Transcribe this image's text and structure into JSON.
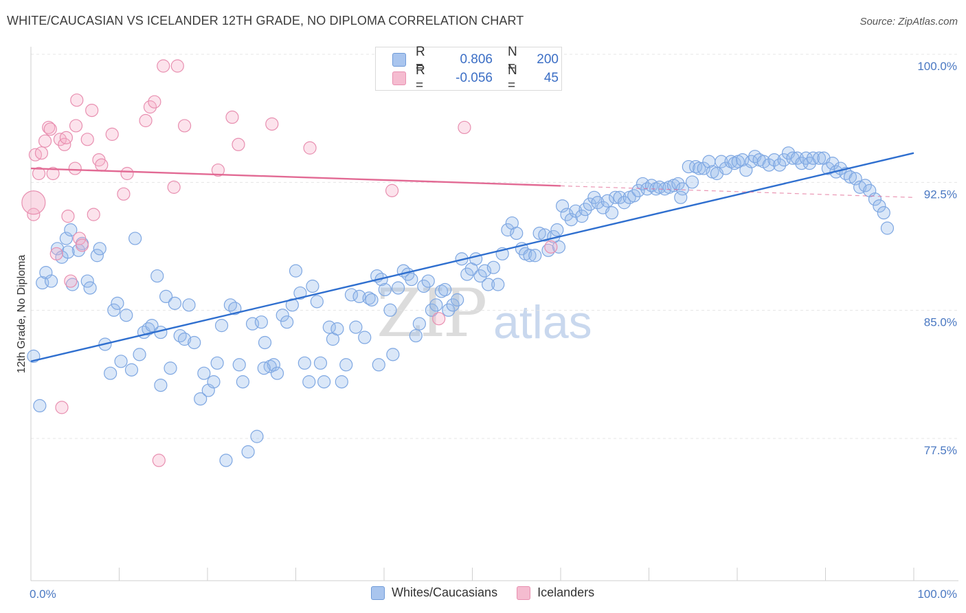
{
  "title": "WHITE/CAUCASIAN VS ICELANDER 12TH GRADE, NO DIPLOMA CORRELATION CHART",
  "source": "Source: ZipAtlas.com",
  "watermark": {
    "zip": "ZIP",
    "atlas": "atlas"
  },
  "legend": {
    "rows": [
      {
        "r_label": "R =",
        "r_value": "0.806",
        "n_label": "N =",
        "n_value": "200",
        "color": "#a9c5ee",
        "border": "#6f9ad8"
      },
      {
        "r_label": "R =",
        "r_value": "-0.056",
        "n_label": "N =",
        "n_value": "45",
        "color": "#f5bcd0",
        "border": "#e88fb0"
      }
    ]
  },
  "bottom_legend": [
    {
      "label": "Whites/Caucasians",
      "color": "#a9c5ee",
      "border": "#6f9ad8"
    },
    {
      "label": "Icelanders",
      "color": "#f5bcd0",
      "border": "#e88fb0"
    }
  ],
  "chart_data": {
    "type": "scatter",
    "ylabel": "12th Grade, No Diploma",
    "xlim": [
      0,
      100
    ],
    "ylim": [
      70.0,
      101.0
    ],
    "x_tick_labels": [
      {
        "x": 0,
        "label": "0.0%"
      },
      {
        "x": 100,
        "label": "100.0%"
      }
    ],
    "y_ticks": [
      {
        "y": 100.0,
        "label": "100.0%"
      },
      {
        "y": 92.5,
        "label": "92.5%"
      },
      {
        "y": 85.0,
        "label": "85.0%"
      },
      {
        "y": 77.5,
        "label": "77.5%"
      }
    ],
    "grid": true,
    "series": [
      {
        "name": "Whites/Caucasians",
        "color": "#7ea7e2",
        "fill": "rgba(150,185,235,0.35)",
        "trend": {
          "x": [
            0,
            100
          ],
          "y": [
            82.7,
            94.9
          ],
          "color": "#2f6fcf",
          "dashed_from": null
        },
        "points": [
          [
            0.3,
            83.0
          ],
          [
            1,
            80.1
          ],
          [
            1.3,
            87.3
          ],
          [
            1.7,
            87.9
          ],
          [
            2.3,
            87.4
          ],
          [
            3,
            89.3
          ],
          [
            3.5,
            88.8
          ],
          [
            4,
            89.9
          ],
          [
            4.5,
            90.4
          ],
          [
            4.7,
            87.2
          ],
          [
            5.4,
            89.2
          ],
          [
            5.8,
            89.6
          ],
          [
            6.4,
            87.4
          ],
          [
            6.7,
            87.0
          ],
          [
            7.5,
            88.9
          ],
          [
            7.8,
            89.3
          ],
          [
            8.4,
            83.7
          ],
          [
            9,
            82.0
          ],
          [
            9.4,
            85.7
          ],
          [
            9.8,
            86.1
          ],
          [
            10.2,
            82.7
          ],
          [
            10.8,
            85.4
          ],
          [
            11.4,
            82.2
          ],
          [
            11.8,
            89.9
          ],
          [
            12.3,
            83.1
          ],
          [
            12.8,
            84.4
          ],
          [
            13.3,
            84.6
          ],
          [
            13.7,
            84.8
          ],
          [
            14.3,
            87.7
          ],
          [
            14.7,
            84.4
          ],
          [
            15.3,
            86.5
          ],
          [
            15.8,
            82.3
          ],
          [
            16.3,
            86.1
          ],
          [
            16.9,
            84.2
          ],
          [
            17.4,
            84.0
          ],
          [
            17.9,
            86.0
          ],
          [
            18.5,
            83.8
          ],
          [
            19.2,
            80.5
          ],
          [
            19.6,
            82.0
          ],
          [
            20.1,
            81.0
          ],
          [
            20.7,
            81.5
          ],
          [
            21.1,
            82.6
          ],
          [
            21.6,
            84.8
          ],
          [
            22.1,
            76.9
          ],
          [
            22.6,
            86.0
          ],
          [
            23.1,
            85.8
          ],
          [
            23.6,
            82.5
          ],
          [
            24,
            81.5
          ],
          [
            24.6,
            77.4
          ],
          [
            25.1,
            84.9
          ],
          [
            25.6,
            78.3
          ],
          [
            26.1,
            85.0
          ],
          [
            26.5,
            83.8
          ],
          [
            27.1,
            82.4
          ],
          [
            27.5,
            82.5
          ],
          [
            27.9,
            82.0
          ],
          [
            28.5,
            85.4
          ],
          [
            29,
            85.0
          ],
          [
            29.6,
            86.0
          ],
          [
            30,
            88.0
          ],
          [
            30.5,
            86.7
          ],
          [
            31,
            82.6
          ],
          [
            31.5,
            81.5
          ],
          [
            31.9,
            87.1
          ],
          [
            32.4,
            86.2
          ],
          [
            32.8,
            82.6
          ],
          [
            33.2,
            81.5
          ],
          [
            33.8,
            84.7
          ],
          [
            34.2,
            84.0
          ],
          [
            34.7,
            84.6
          ],
          [
            35.2,
            81.5
          ],
          [
            35.7,
            82.5
          ],
          [
            36.3,
            86.6
          ],
          [
            36.8,
            84.7
          ],
          [
            37.2,
            86.5
          ],
          [
            37.8,
            84.1
          ],
          [
            38.3,
            86.4
          ],
          [
            38.6,
            86.3
          ],
          [
            39.2,
            87.7
          ],
          [
            39.7,
            87.5
          ],
          [
            40.1,
            86.9
          ],
          [
            40.7,
            85.7
          ],
          [
            41,
            83.1
          ],
          [
            41.6,
            87.0
          ],
          [
            42.2,
            88.0
          ],
          [
            42.7,
            87.8
          ],
          [
            43.1,
            87.5
          ],
          [
            43.6,
            84.2
          ],
          [
            44,
            84.9
          ],
          [
            44.5,
            87.1
          ],
          [
            45,
            87.4
          ],
          [
            45.4,
            85.7
          ],
          [
            45.9,
            86.0
          ],
          [
            46.5,
            86.8
          ],
          [
            46.9,
            86.9
          ],
          [
            47.3,
            85.7
          ],
          [
            47.8,
            86.0
          ],
          [
            48.3,
            86.3
          ],
          [
            48.8,
            88.7
          ],
          [
            49.4,
            87.8
          ],
          [
            49.9,
            88.1
          ],
          [
            50.4,
            88.7
          ],
          [
            50.9,
            87.7
          ],
          [
            51.4,
            88.0
          ],
          [
            51.8,
            87.2
          ],
          [
            52.4,
            88.2
          ],
          [
            52.9,
            87.2
          ],
          [
            53.4,
            89.0
          ],
          [
            54,
            90.4
          ],
          [
            54.5,
            90.8
          ],
          [
            55,
            90.2
          ],
          [
            55.6,
            89.3
          ],
          [
            56,
            89.0
          ],
          [
            56.5,
            88.9
          ],
          [
            57.1,
            88.9
          ],
          [
            57.6,
            90.2
          ],
          [
            58.2,
            90.1
          ],
          [
            58.6,
            89.2
          ],
          [
            59.2,
            90.0
          ],
          [
            59.6,
            90.4
          ],
          [
            60.2,
            91.8
          ],
          [
            60.7,
            91.3
          ],
          [
            61.2,
            91.0
          ],
          [
            61.7,
            91.5
          ],
          [
            62.4,
            91.2
          ],
          [
            62.8,
            91.6
          ],
          [
            63.3,
            91.9
          ],
          [
            63.8,
            92.3
          ],
          [
            64.2,
            92.0
          ],
          [
            64.8,
            91.7
          ],
          [
            65.3,
            92.1
          ],
          [
            65.8,
            91.4
          ],
          [
            66.2,
            92.3
          ],
          [
            66.7,
            92.3
          ],
          [
            67.2,
            92.0
          ],
          [
            67.8,
            92.3
          ],
          [
            68.3,
            92.4
          ],
          [
            68.8,
            92.7
          ],
          [
            69.3,
            93.1
          ],
          [
            69.8,
            92.8
          ],
          [
            70.3,
            93.0
          ],
          [
            70.8,
            92.8
          ],
          [
            71.2,
            92.9
          ],
          [
            71.8,
            92.8
          ],
          [
            72.3,
            92.9
          ],
          [
            72.8,
            93.0
          ],
          [
            73.3,
            93.1
          ],
          [
            73.8,
            92.8
          ],
          [
            74.5,
            94.1
          ],
          [
            74.9,
            93.2
          ],
          [
            75.3,
            94.1
          ],
          [
            75.7,
            94.0
          ],
          [
            76.2,
            94.0
          ],
          [
            76.8,
            94.4
          ],
          [
            77.2,
            93.8
          ],
          [
            77.7,
            93.7
          ],
          [
            78.2,
            94.4
          ],
          [
            78.7,
            94.0
          ],
          [
            79.3,
            94.4
          ],
          [
            79.7,
            94.3
          ],
          [
            80.1,
            94.4
          ],
          [
            80.6,
            94.5
          ],
          [
            81,
            93.9
          ],
          [
            81.6,
            94.4
          ],
          [
            82,
            94.7
          ],
          [
            82.5,
            94.5
          ],
          [
            83,
            94.4
          ],
          [
            83.6,
            94.2
          ],
          [
            84.2,
            94.5
          ],
          [
            84.8,
            94.2
          ],
          [
            85.3,
            94.5
          ],
          [
            85.8,
            94.9
          ],
          [
            86.3,
            94.6
          ],
          [
            86.8,
            94.6
          ],
          [
            87.3,
            94.3
          ],
          [
            87.8,
            94.6
          ],
          [
            88.2,
            94.3
          ],
          [
            88.6,
            94.6
          ],
          [
            89.3,
            94.6
          ],
          [
            89.8,
            94.6
          ],
          [
            90.3,
            94.0
          ],
          [
            90.8,
            94.3
          ],
          [
            91.2,
            93.8
          ],
          [
            91.7,
            94.0
          ],
          [
            92.3,
            93.7
          ],
          [
            92.8,
            93.5
          ],
          [
            93.4,
            93.4
          ],
          [
            93.9,
            92.9
          ],
          [
            94.5,
            93.0
          ],
          [
            95,
            92.7
          ],
          [
            95.6,
            92.2
          ],
          [
            96.1,
            91.8
          ],
          [
            96.6,
            91.4
          ],
          [
            97,
            90.5
          ],
          [
            4.2,
            89.1
          ],
          [
            14.7,
            81.3
          ],
          [
            26.4,
            82.3
          ],
          [
            39.4,
            82.5
          ],
          [
            59.8,
            89.4
          ],
          [
            73.6,
            92.3
          ]
        ]
      },
      {
        "name": "Icelanders",
        "color": "#e88fb0",
        "fill": "rgba(245,175,200,0.35)",
        "trend": {
          "x": [
            0,
            100
          ],
          "y": [
            94.0,
            92.3
          ],
          "color": "#e26a94",
          "dashed_from": 60
        },
        "points": [
          [
            0.3,
            91.3
          ],
          [
            0.5,
            94.8
          ],
          [
            0.9,
            93.7
          ],
          [
            1.2,
            94.9
          ],
          [
            1.6,
            95.6
          ],
          [
            2,
            96.4
          ],
          [
            2.2,
            96.3
          ],
          [
            2.5,
            93.7
          ],
          [
            2.9,
            89.0
          ],
          [
            3.3,
            95.7
          ],
          [
            3.5,
            80.0
          ],
          [
            3.8,
            95.4
          ],
          [
            4,
            95.8
          ],
          [
            4.2,
            91.2
          ],
          [
            4.5,
            87.4
          ],
          [
            5,
            94.0
          ],
          [
            5.1,
            96.5
          ],
          [
            5.5,
            89.9
          ],
          [
            5.8,
            89.5
          ],
          [
            6.4,
            95.7
          ],
          [
            6.9,
            97.4
          ],
          [
            7.1,
            91.3
          ],
          [
            7.7,
            94.5
          ],
          [
            8,
            94.2
          ],
          [
            9.2,
            96.0
          ],
          [
            10.5,
            92.5
          ],
          [
            10.9,
            93.7
          ],
          [
            13,
            96.8
          ],
          [
            13.5,
            97.6
          ],
          [
            14,
            97.9
          ],
          [
            14.5,
            76.9
          ],
          [
            15,
            100.0
          ],
          [
            16.2,
            92.9
          ],
          [
            16.6,
            100.0
          ],
          [
            17.4,
            96.5
          ],
          [
            21.2,
            93.9
          ],
          [
            22.8,
            97.0
          ],
          [
            23.5,
            95.4
          ],
          [
            27.3,
            96.6
          ],
          [
            31.6,
            95.2
          ],
          [
            40.9,
            92.7
          ],
          [
            46.2,
            85.2
          ],
          [
            49.1,
            96.4
          ],
          [
            58.9,
            89.4
          ],
          [
            5.2,
            98.0
          ]
        ]
      }
    ]
  }
}
